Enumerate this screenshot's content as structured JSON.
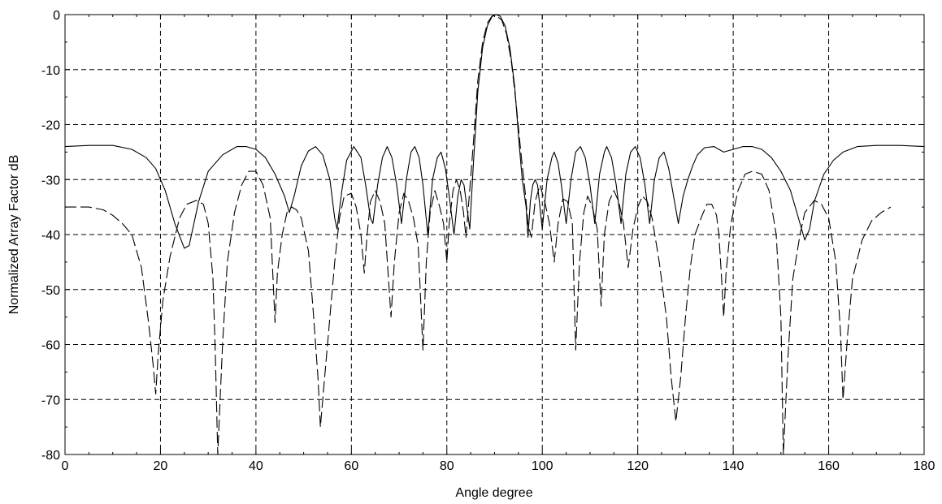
{
  "chart_data": {
    "type": "line",
    "title": "",
    "xlabel": "Angle degree",
    "ylabel": "Normalized Array Factor dB",
    "xlim": [
      0,
      180
    ],
    "ylim": [
      -80,
      0
    ],
    "xticks": [
      0,
      20,
      40,
      60,
      80,
      100,
      120,
      140,
      160,
      180
    ],
    "yticks": [
      0,
      -10,
      -20,
      -30,
      -40,
      -50,
      -60,
      -70,
      -80
    ],
    "x_tick_labels": [
      "0",
      "20",
      "40",
      "60",
      "80",
      "100",
      "120",
      "140",
      "160",
      "180"
    ],
    "y_tick_labels": [
      "0",
      "-10",
      "-20",
      "-30",
      "-40",
      "-50",
      "-60",
      "-70",
      "-80"
    ],
    "grid": true,
    "grid_style": "dashed",
    "legend": "none",
    "series": [
      {
        "style": "solid",
        "color": "#000000",
        "points": [
          [
            0,
            -24
          ],
          [
            5,
            -23.8
          ],
          [
            10,
            -23.8
          ],
          [
            14,
            -24.5
          ],
          [
            17,
            -26
          ],
          [
            19,
            -28
          ],
          [
            21,
            -32
          ],
          [
            23,
            -38
          ],
          [
            25,
            -42.5
          ],
          [
            26,
            -42
          ],
          [
            28,
            -34
          ],
          [
            30,
            -28.5
          ],
          [
            33,
            -25.5
          ],
          [
            36,
            -24
          ],
          [
            38,
            -24
          ],
          [
            40,
            -24.5
          ],
          [
            42,
            -26
          ],
          [
            44,
            -29
          ],
          [
            46,
            -33
          ],
          [
            47,
            -36
          ],
          [
            48,
            -33
          ],
          [
            49.5,
            -27.5
          ],
          [
            51,
            -24.8
          ],
          [
            52.5,
            -24
          ],
          [
            54,
            -25.5
          ],
          [
            55.5,
            -30
          ],
          [
            56.5,
            -37
          ],
          [
            57,
            -39
          ],
          [
            58,
            -32
          ],
          [
            59,
            -26.5
          ],
          [
            60.5,
            -24
          ],
          [
            62,
            -26
          ],
          [
            63,
            -31
          ],
          [
            64,
            -37
          ],
          [
            64.5,
            -38
          ],
          [
            65.5,
            -31
          ],
          [
            66.5,
            -26
          ],
          [
            67.5,
            -24
          ],
          [
            68.5,
            -26
          ],
          [
            69.5,
            -31
          ],
          [
            70.5,
            -38
          ],
          [
            71.5,
            -30
          ],
          [
            72.5,
            -25
          ],
          [
            73.3,
            -24
          ],
          [
            74.2,
            -26
          ],
          [
            75,
            -31
          ],
          [
            76,
            -40
          ],
          [
            77,
            -30
          ],
          [
            78,
            -26
          ],
          [
            78.8,
            -25
          ],
          [
            79.7,
            -28
          ],
          [
            80.5,
            -33
          ],
          [
            81.5,
            -40
          ],
          [
            82.3,
            -33
          ],
          [
            83,
            -30
          ],
          [
            83.6,
            -31
          ],
          [
            84.2,
            -35
          ],
          [
            84.8,
            -39
          ],
          [
            85.5,
            -28
          ],
          [
            86.5,
            -14
          ],
          [
            87.5,
            -6
          ],
          [
            88.5,
            -2
          ],
          [
            89.5,
            -0.3
          ],
          [
            90.3,
            0
          ],
          [
            91.2,
            -0.3
          ],
          [
            92.2,
            -2
          ],
          [
            93.2,
            -6
          ],
          [
            94.2,
            -13
          ],
          [
            95.2,
            -24
          ],
          [
            95.8,
            -30
          ],
          [
            96.6,
            -35
          ],
          [
            97,
            -40.5
          ],
          [
            97.5,
            -34
          ],
          [
            98,
            -31
          ],
          [
            98.5,
            -30
          ],
          [
            99,
            -31
          ],
          [
            99.5,
            -35
          ],
          [
            100,
            -39
          ],
          [
            101,
            -30
          ],
          [
            102,
            -26
          ],
          [
            102.5,
            -25
          ],
          [
            103.3,
            -27
          ],
          [
            104,
            -31
          ],
          [
            105,
            -38
          ],
          [
            106,
            -30
          ],
          [
            107,
            -25
          ],
          [
            108,
            -24
          ],
          [
            109,
            -26
          ],
          [
            110,
            -31
          ],
          [
            111,
            -38
          ],
          [
            112,
            -29
          ],
          [
            113,
            -25
          ],
          [
            113.5,
            -24
          ],
          [
            114.5,
            -26
          ],
          [
            115.5,
            -31
          ],
          [
            116.5,
            -38
          ],
          [
            117.5,
            -29
          ],
          [
            118.5,
            -25
          ],
          [
            119.5,
            -24
          ],
          [
            120.5,
            -26
          ],
          [
            121.5,
            -31
          ],
          [
            122.5,
            -38
          ],
          [
            123.5,
            -30
          ],
          [
            124.5,
            -26
          ],
          [
            125.5,
            -25
          ],
          [
            126.5,
            -28
          ],
          [
            127.5,
            -33
          ],
          [
            128.5,
            -38
          ],
          [
            129.5,
            -33
          ],
          [
            130.5,
            -30
          ],
          [
            131.5,
            -27.5
          ],
          [
            132.5,
            -25.5
          ],
          [
            134,
            -24.2
          ],
          [
            136,
            -24
          ],
          [
            138,
            -25
          ],
          [
            140,
            -24.5
          ],
          [
            142,
            -24
          ],
          [
            144,
            -24
          ],
          [
            146,
            -24.5
          ],
          [
            148,
            -26
          ],
          [
            150,
            -28.5
          ],
          [
            152,
            -32
          ],
          [
            154,
            -38
          ],
          [
            155,
            -41
          ],
          [
            156,
            -39
          ],
          [
            157,
            -34
          ],
          [
            159,
            -29
          ],
          [
            161,
            -26.5
          ],
          [
            163,
            -25
          ],
          [
            166,
            -24
          ],
          [
            170,
            -23.8
          ],
          [
            175,
            -23.8
          ],
          [
            180,
            -24
          ]
        ]
      },
      {
        "style": "dashed",
        "color": "#000000",
        "points": [
          [
            0,
            -35
          ],
          [
            5,
            -35
          ],
          [
            8,
            -35.5
          ],
          [
            10,
            -36.5
          ],
          [
            12,
            -38
          ],
          [
            14,
            -40
          ],
          [
            16,
            -46
          ],
          [
            17.5,
            -56
          ],
          [
            18.5,
            -64
          ],
          [
            19,
            -69
          ],
          [
            19.5,
            -62
          ],
          [
            20.5,
            -52
          ],
          [
            22,
            -44
          ],
          [
            24,
            -37
          ],
          [
            25.5,
            -34.5
          ],
          [
            27.5,
            -33.8
          ],
          [
            29,
            -34.5
          ],
          [
            30,
            -38
          ],
          [
            31,
            -48
          ],
          [
            31.5,
            -62
          ],
          [
            32,
            -80
          ],
          [
            33,
            -60
          ],
          [
            34,
            -45
          ],
          [
            35.5,
            -36
          ],
          [
            37,
            -31
          ],
          [
            38.5,
            -28.5
          ],
          [
            40,
            -28.5
          ],
          [
            41.5,
            -31
          ],
          [
            43,
            -37
          ],
          [
            44,
            -56
          ],
          [
            44.5,
            -47
          ],
          [
            45.5,
            -40
          ],
          [
            46.5,
            -36
          ],
          [
            47.5,
            -35
          ],
          [
            48.5,
            -35.5
          ],
          [
            49.5,
            -37
          ],
          [
            51,
            -43
          ],
          [
            52,
            -54
          ],
          [
            53,
            -66
          ],
          [
            53.5,
            -75
          ],
          [
            54.5,
            -65
          ],
          [
            55.5,
            -55
          ],
          [
            56.5,
            -45
          ],
          [
            57.5,
            -37
          ],
          [
            58.5,
            -33
          ],
          [
            60,
            -32.5
          ],
          [
            61,
            -35
          ],
          [
            62,
            -40
          ],
          [
            62.7,
            -47
          ],
          [
            63.3,
            -40
          ],
          [
            64,
            -34
          ],
          [
            65,
            -32
          ],
          [
            66,
            -34
          ],
          [
            67,
            -38
          ],
          [
            68.3,
            -55
          ],
          [
            69,
            -45
          ],
          [
            70,
            -36
          ],
          [
            71,
            -32.5
          ],
          [
            72,
            -34
          ],
          [
            73,
            -37
          ],
          [
            74,
            -42
          ],
          [
            75,
            -61
          ],
          [
            75.7,
            -45
          ],
          [
            76.5,
            -36
          ],
          [
            77.5,
            -32
          ],
          [
            78.5,
            -35
          ],
          [
            79.3,
            -38
          ],
          [
            80,
            -45
          ],
          [
            80.5,
            -38
          ],
          [
            81.3,
            -32
          ],
          [
            82,
            -30
          ],
          [
            82.8,
            -32
          ],
          [
            83.5,
            -36
          ],
          [
            84,
            -40.5
          ],
          [
            84.6,
            -34
          ],
          [
            85.5,
            -24
          ],
          [
            86.5,
            -12
          ],
          [
            87.5,
            -5
          ],
          [
            88.5,
            -1.5
          ],
          [
            89.5,
            -0.2
          ],
          [
            90.5,
            -0.3
          ],
          [
            91.5,
            -1
          ],
          [
            92.5,
            -3.5
          ],
          [
            93.5,
            -8.5
          ],
          [
            94.5,
            -16
          ],
          [
            95.5,
            -25
          ],
          [
            96.5,
            -33
          ],
          [
            97,
            -38
          ],
          [
            97.7,
            -40.5
          ],
          [
            98.5,
            -34
          ],
          [
            99.5,
            -31
          ],
          [
            100.5,
            -34
          ],
          [
            101.5,
            -38
          ],
          [
            102.5,
            -45
          ],
          [
            103.3,
            -38
          ],
          [
            104.3,
            -33.5
          ],
          [
            105.3,
            -34
          ],
          [
            106.3,
            -38
          ],
          [
            107,
            -61
          ],
          [
            107.8,
            -45
          ],
          [
            108.7,
            -36
          ],
          [
            109.5,
            -33
          ],
          [
            110.5,
            -35
          ],
          [
            111.5,
            -39
          ],
          [
            112.3,
            -53
          ],
          [
            113,
            -40
          ],
          [
            114,
            -34
          ],
          [
            115,
            -32
          ],
          [
            116,
            -34
          ],
          [
            117,
            -38
          ],
          [
            118,
            -46
          ],
          [
            119,
            -39
          ],
          [
            120,
            -35
          ],
          [
            121,
            -33
          ],
          [
            122,
            -34
          ],
          [
            123,
            -37
          ],
          [
            124.5,
            -45
          ],
          [
            126,
            -55
          ],
          [
            127,
            -66
          ],
          [
            128,
            -74
          ],
          [
            129,
            -66
          ],
          [
            130,
            -55
          ],
          [
            131,
            -46
          ],
          [
            132,
            -40
          ],
          [
            133.5,
            -36.5
          ],
          [
            134.5,
            -34.5
          ],
          [
            135.5,
            -34.5
          ],
          [
            136.5,
            -36.5
          ],
          [
            137,
            -40
          ],
          [
            137.5,
            -47
          ],
          [
            138,
            -55
          ],
          [
            138.5,
            -47
          ],
          [
            139.5,
            -38
          ],
          [
            141,
            -32
          ],
          [
            142.5,
            -29
          ],
          [
            144,
            -28.5
          ],
          [
            146,
            -29
          ],
          [
            147.5,
            -32
          ],
          [
            149,
            -40
          ],
          [
            150,
            -55
          ],
          [
            150.5,
            -80
          ],
          [
            151.5,
            -62
          ],
          [
            152.5,
            -48
          ],
          [
            154,
            -40
          ],
          [
            155,
            -36
          ],
          [
            157,
            -33.8
          ],
          [
            158.5,
            -34.5
          ],
          [
            160,
            -37
          ],
          [
            161.5,
            -45
          ],
          [
            162.5,
            -58
          ],
          [
            163,
            -70
          ],
          [
            164,
            -58
          ],
          [
            165,
            -48
          ],
          [
            167,
            -41
          ],
          [
            169,
            -37.5
          ],
          [
            171,
            -36
          ],
          [
            173,
            -35
          ]
        ]
      }
    ]
  }
}
